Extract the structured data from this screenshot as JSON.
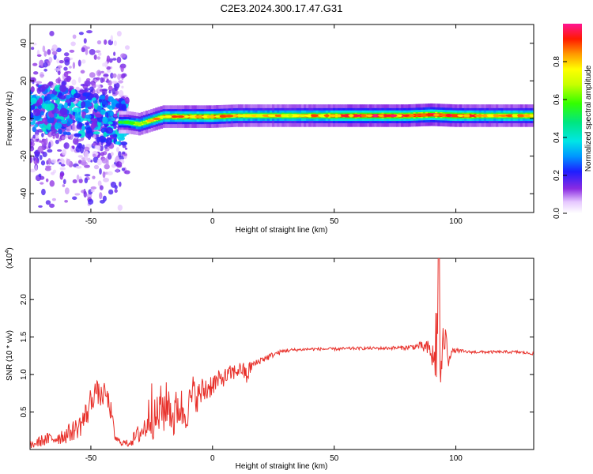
{
  "title": "C2E3.2024.300.17.47.G31",
  "colors": {
    "line": "#e8302a",
    "frame": "#000000",
    "background": "#ffffff"
  },
  "colorbar": {
    "label": "Normalized spectral amplitude",
    "range": [
      0,
      1
    ],
    "ticks": [
      "0.0",
      "0.2",
      "0.4",
      "0.6",
      "0.8"
    ],
    "tick_values": [
      0.0,
      0.2,
      0.4,
      0.6,
      0.8
    ],
    "colormap": "rainbow (white-purple-blue-cyan-green-yellow-red-magenta)"
  },
  "chart_data": [
    {
      "type": "heatmap",
      "name": "spectrogram",
      "xlabel": "Height of straight line (km)",
      "ylabel": "Frequency (Hz)",
      "xlim": [
        -75,
        132
      ],
      "ylim": [
        -50,
        50
      ],
      "xticks": [
        -50,
        0,
        50,
        100
      ],
      "xtick_labels": [
        "-50",
        "0",
        "50",
        "100"
      ],
      "yticks": [
        -40,
        -20,
        0,
        20,
        40
      ],
      "ytick_labels": [
        "-40",
        "-20",
        "0",
        "20",
        "40"
      ],
      "ridge": {
        "x": [
          -75,
          -65,
          -55,
          -45,
          -40,
          -35,
          -30,
          -25,
          -20,
          -10,
          0,
          10,
          20,
          40,
          60,
          80,
          90,
          100,
          110,
          132
        ],
        "freq": [
          6,
          5,
          3,
          0,
          -2,
          -2,
          -3,
          -1,
          1,
          1,
          1,
          1.5,
          1.5,
          1.5,
          1.5,
          1.5,
          2,
          1.5,
          1.5,
          1.5
        ],
        "amplitude": [
          0.3,
          0.35,
          0.3,
          0.35,
          0.45,
          0.55,
          0.7,
          0.75,
          0.8,
          0.85,
          0.85,
          0.8,
          0.75,
          0.8,
          0.9,
          0.9,
          0.95,
          0.9,
          0.8,
          0.85
        ]
      }
    },
    {
      "type": "line",
      "name": "snr",
      "xlabel": "Height of straight line (km)",
      "ylabel": "SNR (10 * v/v)",
      "exponent_label": "(x10",
      "exponent_power": "4",
      "exponent_close": ")",
      "xlim": [
        -75,
        132
      ],
      "ylim": [
        0,
        2.55
      ],
      "xticks": [
        -50,
        0,
        50,
        100
      ],
      "xtick_labels": [
        "-50",
        "0",
        "50",
        "100"
      ],
      "yticks": [
        0.5,
        1.0,
        1.5,
        2.0
      ],
      "ytick_labels": [
        "0.5",
        "1.0",
        "1.5",
        "2.0"
      ],
      "series": [
        {
          "x": [
            -75,
            -70,
            -65,
            -60,
            -55,
            -52,
            -50,
            -48,
            -46,
            -44,
            -42,
            -40,
            -38,
            -35,
            -32,
            -30,
            -28,
            -26,
            -25,
            -24,
            -22,
            -20,
            -18,
            -16,
            -14,
            -12,
            -10,
            -8,
            -6,
            -4,
            -2,
            0,
            2,
            4,
            6,
            8,
            10,
            12,
            14,
            16,
            18,
            20,
            22,
            24,
            26,
            28,
            30,
            35,
            40,
            50,
            60,
            70,
            80,
            85,
            88,
            90,
            91,
            92,
            93,
            94,
            95,
            96,
            97,
            98,
            100,
            105,
            110,
            115,
            120,
            125,
            132
          ],
          "y": [
            0.05,
            0.12,
            0.15,
            0.2,
            0.3,
            0.45,
            0.65,
            0.8,
            0.7,
            0.75,
            0.55,
            0.15,
            0.1,
            0.08,
            0.15,
            0.22,
            0.28,
            0.45,
            0.7,
            0.35,
            0.5,
            0.55,
            0.62,
            0.4,
            0.6,
            0.5,
            0.55,
            0.75,
            0.7,
            0.78,
            0.82,
            0.88,
            0.9,
            0.95,
            0.98,
            1.02,
            1.05,
            1.08,
            0.98,
            1.12,
            1.15,
            1.2,
            1.22,
            1.25,
            1.28,
            1.3,
            1.32,
            1.33,
            1.34,
            1.34,
            1.35,
            1.35,
            1.36,
            1.38,
            1.35,
            1.3,
            1.1,
            1.6,
            0.85,
            1.05,
            1.5,
            1.45,
            1.2,
            1.3,
            1.32,
            1.3,
            1.3,
            1.3,
            1.3,
            1.3,
            1.28
          ],
          "noise_amplitude": [
            0.05,
            0.08,
            0.1,
            0.12,
            0.15,
            0.2,
            0.2,
            0.15,
            0.15,
            0.15,
            0.15,
            0.05,
            0.04,
            0.05,
            0.1,
            0.15,
            0.2,
            0.3,
            0.5,
            0.3,
            0.35,
            0.35,
            0.3,
            0.3,
            0.3,
            0.3,
            0.25,
            0.25,
            0.2,
            0.2,
            0.2,
            0.15,
            0.15,
            0.12,
            0.12,
            0.12,
            0.1,
            0.1,
            0.15,
            0.08,
            0.05,
            0.05,
            0.05,
            0.04,
            0.03,
            0.03,
            0.03,
            0.02,
            0.02,
            0.02,
            0.02,
            0.02,
            0.03,
            0.05,
            0.1,
            0.2,
            0.3,
            0.8,
            0.3,
            0.2,
            0.25,
            0.15,
            0.1,
            0.05,
            0.03,
            0.02,
            0.02,
            0.02,
            0.02,
            0.02,
            0.02
          ],
          "peak": {
            "x": 93,
            "y": 2.55
          }
        }
      ]
    }
  ]
}
